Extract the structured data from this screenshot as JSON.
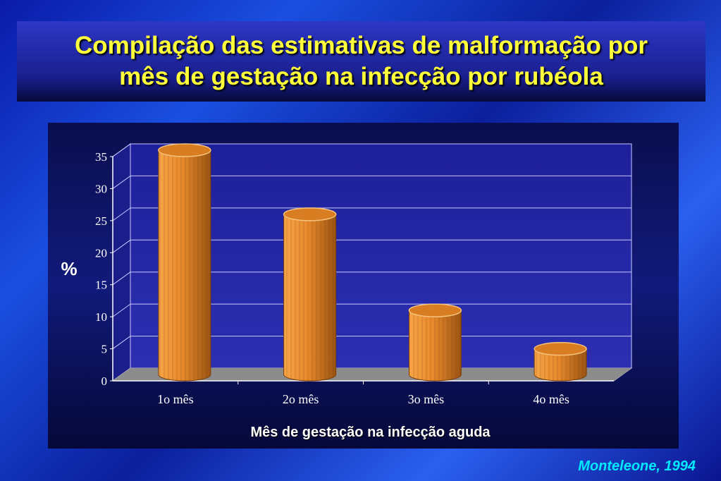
{
  "title": {
    "line1": "Compilação das estimativas de malformação por",
    "line2": "mês de gestação na infecção por rubéola"
  },
  "citation": "Monteleone, 1994",
  "colors": {
    "title_text": "#ffff3a",
    "citation_text": "#00eaff",
    "bar_fill": "#e88a2c",
    "bar_top": "#d97d22",
    "plot_bg": "#2b2fb0"
  },
  "chart_data": {
    "type": "bar",
    "title": "",
    "xlabel": "Mês de gestação na infecção aguda",
    "ylabel": "%",
    "categories": [
      "1o mês",
      "2o mês",
      "3o mês",
      "4o mês"
    ],
    "values": [
      35,
      25,
      10,
      4
    ],
    "ylim": [
      0,
      35
    ],
    "yticks": [
      "0",
      "5",
      "10",
      "15",
      "20",
      "25",
      "30",
      "35"
    ],
    "grid": true,
    "style": "3d-cylinder"
  }
}
